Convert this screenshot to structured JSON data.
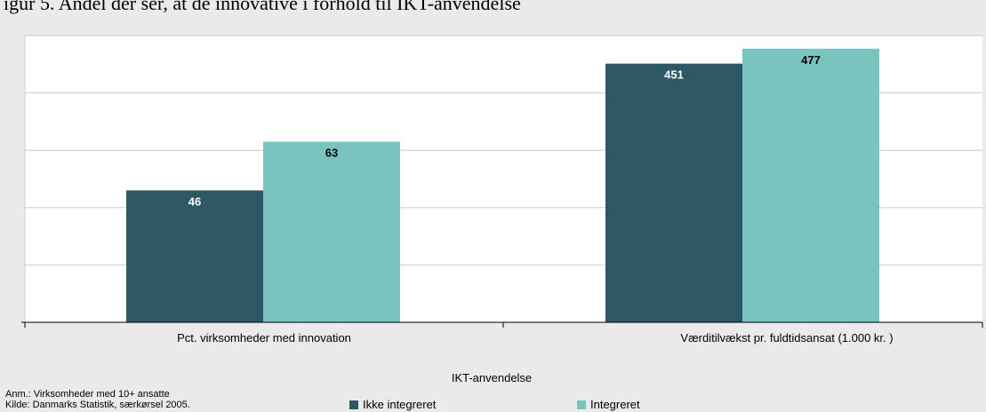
{
  "figure": {
    "title": "igur 5. Andel der ser, at de innovative i forhold til IKT-anvendelse"
  },
  "notes": {
    "anm": "Anm.: Virksomheder med 10+ ansatte",
    "kilde": "Kilde: Danmarks Statistik, særkørsel 2005."
  },
  "colors": {
    "ikke_integreret": "#2e5866",
    "integreret": "#79c4be",
    "plot_bg": "#ffffff",
    "gridline": "#cccccc",
    "label_light": "#ffffff",
    "label_dark": "#000000"
  },
  "chart_data": {
    "type": "bar",
    "title": "",
    "xlabel": "IKT-anvendelse",
    "ylabel": "",
    "categories": [
      "Pct. virksomheder med innovation",
      "Værditilvækst pr. fuldtidsansat  (1.000 kr. )"
    ],
    "series": [
      {
        "name": "Ikke integreret",
        "values": [
          46,
          451
        ],
        "value_labels": [
          "46",
          "451"
        ]
      },
      {
        "name": "Integreret",
        "values": [
          63,
          477
        ],
        "value_labels": [
          "63",
          "477"
        ]
      }
    ],
    "category_scales": [
      {
        "min": 0,
        "max": 100
      },
      {
        "min": 0,
        "max": 500
      }
    ],
    "grid": true,
    "legend_position": "bottom"
  }
}
